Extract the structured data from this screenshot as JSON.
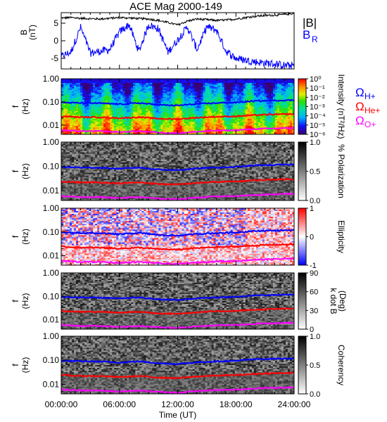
{
  "title": "ACE Mag 2000-149",
  "colors": {
    "B_mag": "#000000",
    "B_R": "#0000ff",
    "omega_H": "#0000ff",
    "omega_He": "#ff0000",
    "omega_O": "#ff00ff"
  },
  "chart_data": [
    {
      "type": "line",
      "panel": "B",
      "ylabel_top": "B",
      "ylabel_bottom": "(nT)",
      "ylim": [
        -8,
        8
      ],
      "yticks": [
        "5",
        "0",
        "-5"
      ],
      "legend": [
        {
          "text": "|B|",
          "color": "#000000"
        },
        {
          "text": "B",
          "sub": "R",
          "color": "#0000ff"
        }
      ],
      "series": [
        {
          "name": "|B|",
          "x": [
            0,
            1,
            2,
            3,
            4,
            5,
            6,
            7,
            8,
            9,
            10,
            11,
            12,
            13,
            14,
            15,
            16,
            17,
            18,
            19,
            20,
            21,
            22,
            23,
            24
          ],
          "values": [
            6.5,
            6.6,
            6.4,
            6.3,
            6.2,
            6.4,
            6.6,
            6.5,
            6.3,
            6.2,
            5.8,
            5.2,
            4.5,
            5.6,
            6.2,
            6.0,
            5.8,
            5.9,
            6.2,
            6.6,
            7.0,
            7.2,
            7.3,
            7.5,
            7.8
          ]
        },
        {
          "name": "B_R",
          "x": [
            0,
            1,
            2,
            3,
            4,
            5,
            6,
            7,
            8,
            9,
            10,
            11,
            12,
            13,
            14,
            15,
            16,
            17,
            18,
            19,
            20,
            21,
            22,
            23,
            24
          ],
          "values": [
            -4.5,
            -3.2,
            3.8,
            -3.5,
            -3.0,
            -2.5,
            2.5,
            4.6,
            -3.0,
            4.5,
            3.5,
            -3.2,
            0.2,
            4.0,
            -2.5,
            4.0,
            3.0,
            -3.0,
            -5.0,
            -5.5,
            -6.0,
            -6.3,
            -6.6,
            -7.0,
            -7.0
          ]
        }
      ]
    },
    {
      "type": "heatmap",
      "panel": "spectrum",
      "ylabel_top": "f",
      "ylabel_bottom": "(Hz)",
      "ylim": [
        0.004,
        1.0
      ],
      "yscale": "log",
      "yticks": [
        "1.00",
        "0.10",
        "0.01"
      ],
      "colorbar_label": "Intensity (nT²/Hz)",
      "colorbar_ticks": [
        "10⁰",
        "10⁻¹",
        "10⁻²",
        "10⁻³",
        "10⁻⁴",
        "10⁻⁵",
        "10⁻⁶"
      ],
      "gyro_labels": [
        {
          "text": "Ω",
          "sub": "H+",
          "color": "#0000ff"
        },
        {
          "text": "Ω",
          "sub": "He+",
          "color": "#ff0000"
        },
        {
          "text": "Ω",
          "sub": "O+",
          "color": "#ff00ff"
        }
      ]
    },
    {
      "type": "heatmap",
      "panel": "polarization",
      "ylabel_top": "f",
      "ylabel_bottom": "(Hz)",
      "ylim": [
        0.004,
        1.0
      ],
      "yscale": "log",
      "yticks": [
        "1.00",
        "0.10",
        "0.01"
      ],
      "colorbar_label": "% Polarization",
      "colorbar_ticks": [
        "1.0",
        "0.5",
        "0.0"
      ]
    },
    {
      "type": "heatmap",
      "panel": "ellipticity",
      "ylabel_top": "f",
      "ylabel_bottom": "(Hz)",
      "ylim": [
        0.004,
        1.0
      ],
      "yscale": "log",
      "yticks": [
        "1.00",
        "0.10",
        "0.01"
      ],
      "colorbar_label": "Ellipticity",
      "colorbar_ticks": [
        "1",
        "0",
        "-1"
      ]
    },
    {
      "type": "heatmap",
      "panel": "kdotb",
      "ylabel_top": "f",
      "ylabel_bottom": "(Hz)",
      "ylim": [
        0.004,
        1.0
      ],
      "yscale": "log",
      "yticks": [
        "1.00",
        "0.10",
        "0.01"
      ],
      "colorbar_label": "k dot B (Deg)",
      "colorbar_label_line1": "k dot B",
      "colorbar_label_line2": "(Deg)",
      "colorbar_ticks": [
        "90",
        "60",
        "30",
        "0"
      ]
    },
    {
      "type": "heatmap",
      "panel": "coherency",
      "ylabel_top": "f",
      "ylabel_bottom": "(Hz)",
      "ylim": [
        0.004,
        1.0
      ],
      "yscale": "log",
      "yticks": [
        "1.00",
        "0.10",
        "0.01"
      ],
      "colorbar_label": "Coherency",
      "colorbar_ticks": [
        "1.0",
        "0.5",
        "0.0"
      ]
    }
  ],
  "gyrofrequencies": {
    "x": [
      0,
      2,
      4,
      6,
      8,
      10,
      12,
      14,
      16,
      18,
      20,
      22,
      24
    ],
    "H": [
      0.095,
      0.09,
      0.088,
      0.08,
      0.09,
      0.075,
      0.07,
      0.082,
      0.09,
      0.095,
      0.11,
      0.115,
      0.12
    ],
    "He": [
      0.024,
      0.022,
      0.022,
      0.02,
      0.022,
      0.019,
      0.018,
      0.021,
      0.023,
      0.024,
      0.027,
      0.029,
      0.03
    ],
    "O": [
      0.006,
      0.0055,
      0.0055,
      0.005,
      0.0055,
      0.0048,
      0.0045,
      0.0052,
      0.0058,
      0.006,
      0.0068,
      0.0072,
      0.0075
    ]
  },
  "x_axis": {
    "xlim": [
      0,
      24
    ],
    "ticks": [
      "00:00:00",
      "06:00:00",
      "12:00:00",
      "18:00:00",
      "24:00:00"
    ],
    "label": "Time (UT)"
  }
}
